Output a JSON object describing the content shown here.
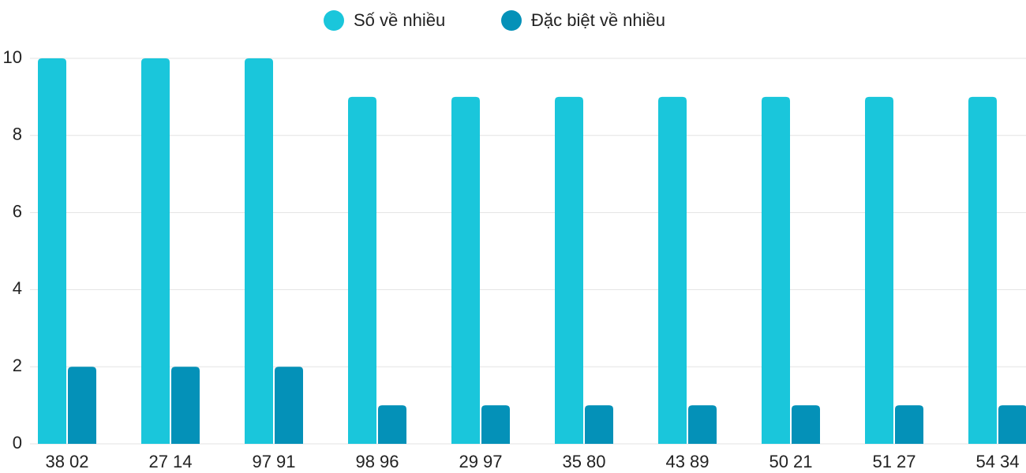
{
  "chart_data": {
    "type": "bar",
    "categories": [
      "38 02",
      "27 14",
      "97 91",
      "98 96",
      "29 97",
      "35 80",
      "43 89",
      "50 21",
      "51 27",
      "54 34"
    ],
    "series": [
      {
        "name": "Số về nhiều",
        "color": "#1ac6db",
        "values": [
          10,
          10,
          10,
          9,
          9,
          9,
          9,
          9,
          9,
          9
        ]
      },
      {
        "name": "Đặc biệt về nhiều",
        "color": "#0491b8",
        "values": [
          2,
          2,
          2,
          1,
          1,
          1,
          1,
          1,
          1,
          1
        ]
      }
    ],
    "ylim": [
      0,
      10
    ],
    "yticks": [
      0,
      2,
      4,
      6,
      8,
      10
    ],
    "grid": true,
    "legend": "top"
  }
}
